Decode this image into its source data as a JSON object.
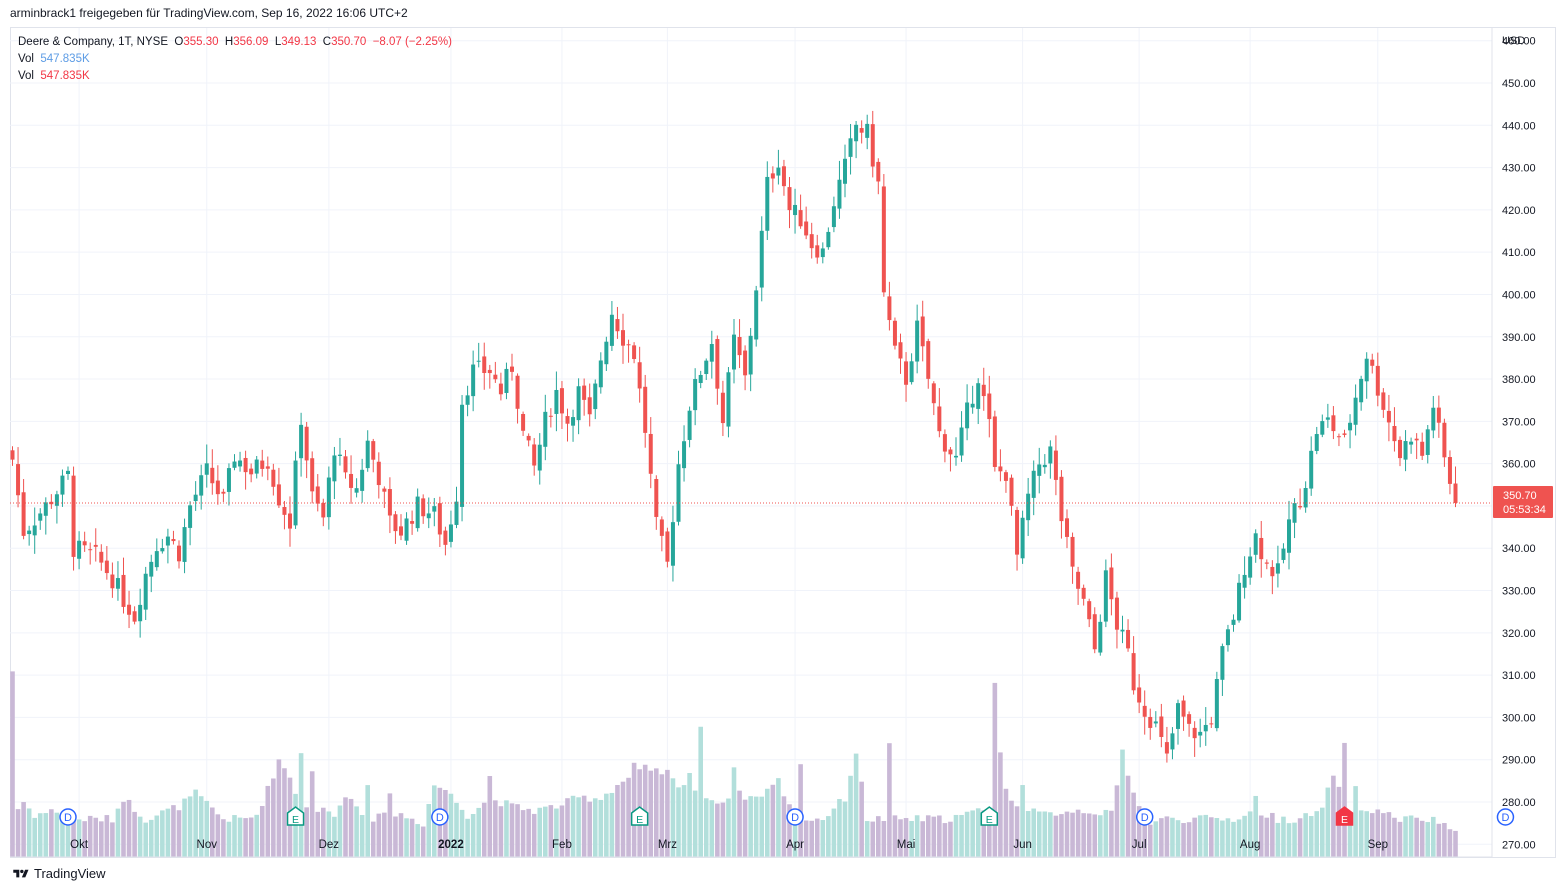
{
  "caption": "arminbrack1 freigegeben für TradingView.com, Sep 16, 2022 16:06 UTC+2",
  "legend": {
    "symbol": "Deere & Company, 1T, NYSE",
    "o_label": "O",
    "o_value": "355.30",
    "h_label": "H",
    "h_value": "356.09",
    "l_label": "L",
    "l_value": "349.13",
    "c_label": "C",
    "c_value": "350.70",
    "change": "−8.07 (−2.25%)",
    "vol1_label": "Vol",
    "vol1_value": "547.835K",
    "vol2_label": "Vol",
    "vol2_value": "547.835K"
  },
  "price_axis": {
    "currency": "USD",
    "last_price": "350.70",
    "countdown": "05:53:34"
  },
  "footer": {
    "brand": "TradingView"
  },
  "colors": {
    "up": "#26a69a",
    "down": "#ef5350",
    "vol_up": "#b2dfdb",
    "vol_down": "#c9b8d6",
    "grid": "#f0f3fa",
    "axis_text": "#131722",
    "last_line": "#ef5350"
  },
  "chart_data": {
    "type": "candlestick",
    "symbol": "Deere & Company",
    "interval": "1T",
    "exchange": "NYSE",
    "ylim": [
      267,
      463
    ],
    "y_ticks": [
      "270.00",
      "280.00",
      "290.00",
      "300.00",
      "310.00",
      "320.00",
      "330.00",
      "340.00",
      "350.00",
      "360.00",
      "370.00",
      "380.00",
      "390.00",
      "400.00",
      "410.00",
      "420.00",
      "430.00",
      "440.00",
      "450.00",
      "460.00"
    ],
    "x_ticks": [
      {
        "label": "Okt",
        "bar": 12
      },
      {
        "label": "Nov",
        "bar": 35
      },
      {
        "label": "Dez",
        "bar": 57
      },
      {
        "label": "2022",
        "bar": 79
      },
      {
        "label": "Feb",
        "bar": 99
      },
      {
        "label": "Mrz",
        "bar": 118
      },
      {
        "label": "Apr",
        "bar": 141
      },
      {
        "label": "Mai",
        "bar": 161
      },
      {
        "label": "Jun",
        "bar": 182
      },
      {
        "label": "Jul",
        "bar": 203
      },
      {
        "label": "Aug",
        "bar": 223
      },
      {
        "label": "Sep",
        "bar": 246
      }
    ],
    "events": [
      {
        "type": "D",
        "bar": 10
      },
      {
        "type": "E",
        "bar": 51
      },
      {
        "type": "D",
        "bar": 77
      },
      {
        "type": "E",
        "bar": 113
      },
      {
        "type": "D",
        "bar": 141
      },
      {
        "type": "E",
        "bar": 176
      },
      {
        "type": "D",
        "bar": 204
      },
      {
        "type": "E",
        "bar": 240
      },
      {
        "type": "D",
        "bar": 269
      }
    ],
    "last_price": 350.7,
    "anchors": [
      [
        0,
        361
      ],
      [
        2,
        344
      ],
      [
        6,
        350
      ],
      [
        10,
        357
      ],
      [
        11,
        340
      ],
      [
        15,
        338
      ],
      [
        18,
        333
      ],
      [
        20,
        328
      ],
      [
        22,
        324
      ],
      [
        24,
        334
      ],
      [
        26,
        341
      ],
      [
        28,
        343
      ],
      [
        30,
        339
      ],
      [
        32,
        350
      ],
      [
        35,
        358
      ],
      [
        38,
        351
      ],
      [
        40,
        362
      ],
      [
        43,
        358
      ],
      [
        46,
        361
      ],
      [
        48,
        352
      ],
      [
        50,
        346
      ],
      [
        52,
        371
      ],
      [
        54,
        352
      ],
      [
        56,
        347
      ],
      [
        58,
        364
      ],
      [
        60,
        356
      ],
      [
        62,
        354
      ],
      [
        64,
        365
      ],
      [
        66,
        357
      ],
      [
        68,
        346
      ],
      [
        70,
        344
      ],
      [
        73,
        350
      ],
      [
        76,
        348
      ],
      [
        78,
        341
      ],
      [
        80,
        353
      ],
      [
        81,
        375
      ],
      [
        83,
        382
      ],
      [
        86,
        382
      ],
      [
        88,
        377
      ],
      [
        90,
        383
      ],
      [
        92,
        367
      ],
      [
        94,
        359
      ],
      [
        96,
        370
      ],
      [
        98,
        377
      ],
      [
        100,
        370
      ],
      [
        102,
        377
      ],
      [
        104,
        370
      ],
      [
        106,
        385
      ],
      [
        108,
        396
      ],
      [
        110,
        390
      ],
      [
        112,
        386
      ],
      [
        114,
        368
      ],
      [
        116,
        345
      ],
      [
        118,
        336
      ],
      [
        120,
        360
      ],
      [
        122,
        374
      ],
      [
        124,
        382
      ],
      [
        126,
        389
      ],
      [
        128,
        370
      ],
      [
        130,
        389
      ],
      [
        132,
        380
      ],
      [
        134,
        402
      ],
      [
        136,
        426
      ],
      [
        138,
        432
      ],
      [
        140,
        420
      ],
      [
        142,
        418
      ],
      [
        144,
        412
      ],
      [
        146,
        410
      ],
      [
        148,
        422
      ],
      [
        150,
        430
      ],
      [
        152,
        440
      ],
      [
        154,
        438
      ],
      [
        156,
        426
      ],
      [
        157,
        400
      ],
      [
        159,
        386
      ],
      [
        161,
        380
      ],
      [
        163,
        392
      ],
      [
        165,
        380
      ],
      [
        167,
        367
      ],
      [
        170,
        361
      ],
      [
        172,
        372
      ],
      [
        174,
        381
      ],
      [
        176,
        369
      ],
      [
        177,
        358
      ],
      [
        179,
        358
      ],
      [
        181,
        338
      ],
      [
        183,
        352
      ],
      [
        185,
        360
      ],
      [
        187,
        363
      ],
      [
        189,
        347
      ],
      [
        191,
        334
      ],
      [
        193,
        327
      ],
      [
        195,
        316
      ],
      [
        197,
        333
      ],
      [
        199,
        322
      ],
      [
        201,
        315
      ],
      [
        202,
        308
      ],
      [
        204,
        302
      ],
      [
        206,
        298
      ],
      [
        208,
        290
      ],
      [
        210,
        302
      ],
      [
        212,
        297
      ],
      [
        214,
        296
      ],
      [
        216,
        300
      ],
      [
        218,
        315
      ],
      [
        220,
        324
      ],
      [
        222,
        336
      ],
      [
        224,
        343
      ],
      [
        226,
        336
      ],
      [
        228,
        334
      ],
      [
        230,
        346
      ],
      [
        232,
        352
      ],
      [
        233,
        356
      ],
      [
        235,
        368
      ],
      [
        237,
        370
      ],
      [
        240,
        365
      ],
      [
        242,
        376
      ],
      [
        244,
        386
      ],
      [
        246,
        378
      ],
      [
        248,
        370
      ],
      [
        250,
        362
      ],
      [
        252,
        367
      ],
      [
        254,
        362
      ],
      [
        256,
        374
      ],
      [
        258,
        361
      ],
      [
        260,
        350.7
      ]
    ],
    "volume_anchors": [
      [
        0,
        277
      ],
      [
        2,
        280
      ],
      [
        4,
        277
      ],
      [
        8,
        278
      ],
      [
        10,
        276
      ],
      [
        14,
        276
      ],
      [
        18,
        276
      ],
      [
        20,
        281
      ],
      [
        24,
        276
      ],
      [
        30,
        279
      ],
      [
        33,
        282
      ],
      [
        38,
        276
      ],
      [
        42,
        276
      ],
      [
        44,
        277
      ],
      [
        46,
        283
      ],
      [
        48,
        290
      ],
      [
        50,
        286
      ],
      [
        52,
        279
      ],
      [
        54,
        278
      ],
      [
        58,
        278
      ],
      [
        60,
        282
      ],
      [
        64,
        276
      ],
      [
        70,
        277
      ],
      [
        74,
        275
      ],
      [
        76,
        284
      ],
      [
        78,
        283
      ],
      [
        82,
        277
      ],
      [
        86,
        281
      ],
      [
        90,
        279
      ],
      [
        94,
        278
      ],
      [
        98,
        279
      ],
      [
        102,
        281
      ],
      [
        106,
        281
      ],
      [
        110,
        285
      ],
      [
        113,
        287
      ],
      [
        115,
        287
      ],
      [
        118,
        287
      ],
      [
        120,
        283
      ],
      [
        122,
        287
      ],
      [
        124,
        279
      ],
      [
        126,
        281
      ],
      [
        128,
        280
      ],
      [
        130,
        282
      ],
      [
        134,
        281
      ],
      [
        138,
        285
      ],
      [
        140,
        279
      ],
      [
        142,
        276
      ],
      [
        146,
        276
      ],
      [
        150,
        281
      ],
      [
        152,
        292
      ],
      [
        154,
        276
      ],
      [
        160,
        276
      ],
      [
        164,
        276
      ],
      [
        168,
        276
      ],
      [
        172,
        277
      ],
      [
        176,
        279
      ],
      [
        178,
        284
      ],
      [
        182,
        278
      ],
      [
        186,
        277
      ],
      [
        190,
        278
      ],
      [
        194,
        278
      ],
      [
        198,
        277
      ],
      [
        200,
        291
      ],
      [
        204,
        275
      ],
      [
        208,
        276
      ],
      [
        212,
        276
      ],
      [
        216,
        276
      ],
      [
        220,
        276
      ],
      [
        224,
        278
      ],
      [
        228,
        276
      ],
      [
        232,
        276
      ],
      [
        236,
        278
      ],
      [
        238,
        287
      ],
      [
        240,
        279
      ],
      [
        242,
        278
      ],
      [
        246,
        278
      ],
      [
        250,
        276
      ],
      [
        254,
        276
      ],
      [
        258,
        275
      ],
      [
        260,
        273
      ]
    ],
    "volume_spikes": [
      [
        0,
        311
      ],
      [
        52,
        292
      ],
      [
        54,
        288
      ],
      [
        58,
        276
      ],
      [
        64,
        285
      ],
      [
        68,
        283
      ],
      [
        86,
        286
      ],
      [
        112,
        289
      ],
      [
        114,
        288
      ],
      [
        124,
        298
      ],
      [
        130,
        289
      ],
      [
        142,
        289
      ],
      [
        158,
        293
      ],
      [
        176,
        276
      ],
      [
        177,
        308
      ],
      [
        178,
        292
      ],
      [
        182,
        285
      ],
      [
        200,
        292
      ],
      [
        224,
        281
      ],
      [
        240,
        293
      ],
      [
        242,
        283
      ]
    ]
  }
}
